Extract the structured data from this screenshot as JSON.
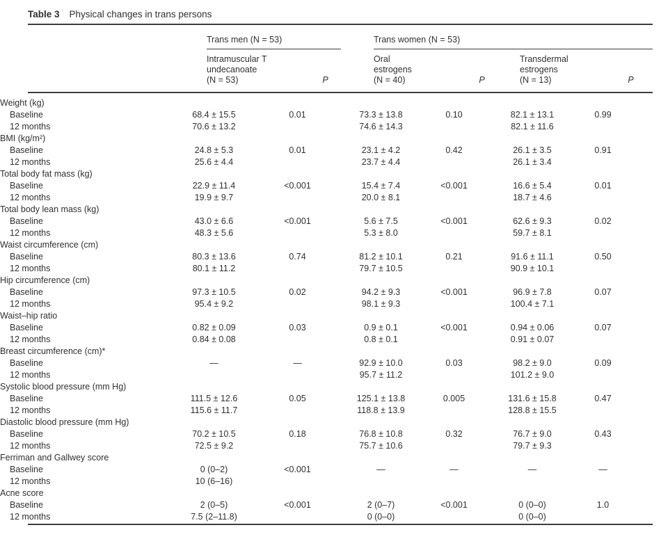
{
  "colors": {
    "text": "#303030",
    "rule": "#3c3c3c",
    "bg": "#ffffff"
  },
  "table": {
    "caption_label": "Table 3",
    "caption_title": "Physical changes in trans persons",
    "groups": [
      {
        "label": "Trans men (N = 53)"
      },
      {
        "label": "Trans women (N = 53)"
      }
    ],
    "columns": [
      {
        "header": ""
      },
      {
        "header": "Intramuscular T\nundecanoate\n(N = 53)"
      },
      {
        "header": "P",
        "italic": true
      },
      {
        "header": "Oral\nestrogens\n(N = 40)"
      },
      {
        "header": "P",
        "italic": true
      },
      {
        "header": "Transdermal\nestrogens\n(N = 13)"
      },
      {
        "header": "P",
        "italic": true
      }
    ],
    "rows": [
      {
        "type": "section",
        "label": "Weight (kg)"
      },
      {
        "type": "data",
        "label": "Baseline",
        "cells": [
          "68.4 ± 15.5",
          "0.01",
          "73.3 ± 13.8",
          "0.10",
          "82.1 ± 13.1",
          "0.99"
        ]
      },
      {
        "type": "data",
        "label": "12 months",
        "cells": [
          "70.6 ± 13.2",
          "",
          "74.6 ± 14.3",
          "",
          "82.1 ± 11.6",
          ""
        ]
      },
      {
        "type": "section",
        "label": "BMI (kg/m²)"
      },
      {
        "type": "data",
        "label": "Baseline",
        "cells": [
          "24.8 ± 5.3",
          "0.01",
          "23.1 ± 4.2",
          "0.42",
          "26.1 ± 3.5",
          "0.91"
        ]
      },
      {
        "type": "data",
        "label": "12 months",
        "cells": [
          "25.6 ± 4.4",
          "",
          "23.7 ± 4.4",
          "",
          "26.1 ± 3.4",
          ""
        ]
      },
      {
        "type": "section",
        "label": "Total body fat mass (kg)"
      },
      {
        "type": "data",
        "label": "Baseline",
        "cells": [
          "22.9 ± 11.4",
          "<0.001",
          "15.4 ± 7.4",
          "<0.001",
          "16.6 ± 5.4",
          "0.01"
        ]
      },
      {
        "type": "data",
        "label": "12 months",
        "cells": [
          "19.9 ± 9.7",
          "",
          "20.0 ± 8.1",
          "",
          "18.7 ± 4.6",
          ""
        ]
      },
      {
        "type": "section",
        "label": "Total body lean mass (kg)"
      },
      {
        "type": "data",
        "label": "Baseline",
        "cells": [
          "43.0 ± 6.6",
          "<0.001",
          "5.6 ± 7.5",
          "<0.001",
          "62.6 ± 9.3",
          "0.02"
        ]
      },
      {
        "type": "data",
        "label": "12 months",
        "cells": [
          "48.3 ± 5.6",
          "",
          "5.3 ± 8.0",
          "",
          "59.7 ± 8.1",
          ""
        ]
      },
      {
        "type": "section",
        "label": "Waist circumference (cm)"
      },
      {
        "type": "data",
        "label": "Baseline",
        "cells": [
          "80.3 ± 13.6",
          "0.74",
          "81.2 ± 10.1",
          "0.21",
          "91.6 ± 11.1",
          "0.50"
        ]
      },
      {
        "type": "data",
        "label": "12 months",
        "cells": [
          "80.1 ± 11.2",
          "",
          "79.7 ± 10.5",
          "",
          "90.9 ± 10.1",
          ""
        ]
      },
      {
        "type": "section",
        "label": "Hip circumference (cm)"
      },
      {
        "type": "data",
        "label": "Baseline",
        "cells": [
          "97.3 ± 10.5",
          "0.02",
          "94.2 ± 9.3",
          "<0.001",
          "96.9 ± 7.8",
          "0.07"
        ]
      },
      {
        "type": "data",
        "label": "12 months",
        "cells": [
          "95.4 ± 9.2",
          "",
          "98.1 ± 9.3",
          "",
          "100.4 ± 7.1",
          ""
        ]
      },
      {
        "type": "section",
        "label": "Waist–hip ratio"
      },
      {
        "type": "data",
        "label": "Baseline",
        "cells": [
          "0.82 ± 0.09",
          "0.03",
          "0.9 ± 0.1",
          "<0.001",
          "0.94 ± 0.06",
          "0.07"
        ]
      },
      {
        "type": "data",
        "label": "12 months",
        "cells": [
          "0.84 ± 0.08",
          "",
          "0.8 ± 0.1",
          "",
          "0.91 ± 0.07",
          ""
        ]
      },
      {
        "type": "section",
        "label": "Breast circumference (cm)*"
      },
      {
        "type": "data",
        "label": "Baseline",
        "cells": [
          "—",
          "—",
          "92.9 ± 10.0",
          "0.03",
          "98.2 ± 9.0",
          "0.09"
        ]
      },
      {
        "type": "data",
        "label": "12 months",
        "cells": [
          "",
          "",
          "95.7 ± 11.2",
          "",
          "101.2 ± 9.0",
          ""
        ]
      },
      {
        "type": "section",
        "label": "Systolic blood pressure (mm Hg)"
      },
      {
        "type": "data",
        "label": "Baseline",
        "cells": [
          "111.5 ± 12.6",
          "0.05",
          "125.1 ± 13.8",
          "0.005",
          "131.6 ± 15.8",
          "0.47"
        ]
      },
      {
        "type": "data",
        "label": "12 months",
        "cells": [
          "115.6 ± 11.7",
          "",
          "118.8 ± 13.9",
          "",
          "128.8 ± 15.5",
          ""
        ]
      },
      {
        "type": "section",
        "label": "Diastolic blood pressure (mm Hg)"
      },
      {
        "type": "data",
        "label": "Baseline",
        "cells": [
          "70.2 ± 10.5",
          "0.18",
          "76.8 ± 10.8",
          "0.32",
          "76.7 ± 9.0",
          "0.43"
        ]
      },
      {
        "type": "data",
        "label": "12 months",
        "cells": [
          "72.5 ± 9.2",
          "",
          "75.7 ± 10.6",
          "",
          "79.7 ± 9.3",
          ""
        ]
      },
      {
        "type": "section",
        "label": "Ferriman and Gallwey score"
      },
      {
        "type": "data",
        "label": "Baseline",
        "cells": [
          "0 (0–2)",
          "<0.001",
          "—",
          "—",
          "—",
          "—"
        ]
      },
      {
        "type": "data",
        "label": "12 months",
        "cells": [
          "10 (6–16)",
          "",
          "",
          "",
          "",
          ""
        ]
      },
      {
        "type": "section",
        "label": "Acne score"
      },
      {
        "type": "data",
        "label": "Baseline",
        "cells": [
          "2 (0–5)",
          "<0.001",
          "2 (0–7)",
          "<0.001",
          "0 (0–0)",
          "1.0"
        ]
      },
      {
        "type": "data",
        "label": "12 months",
        "cells": [
          "7.5 (2–11.8)",
          "",
          "0 (0–0)",
          "",
          "0 (0–0)",
          ""
        ]
      }
    ]
  }
}
